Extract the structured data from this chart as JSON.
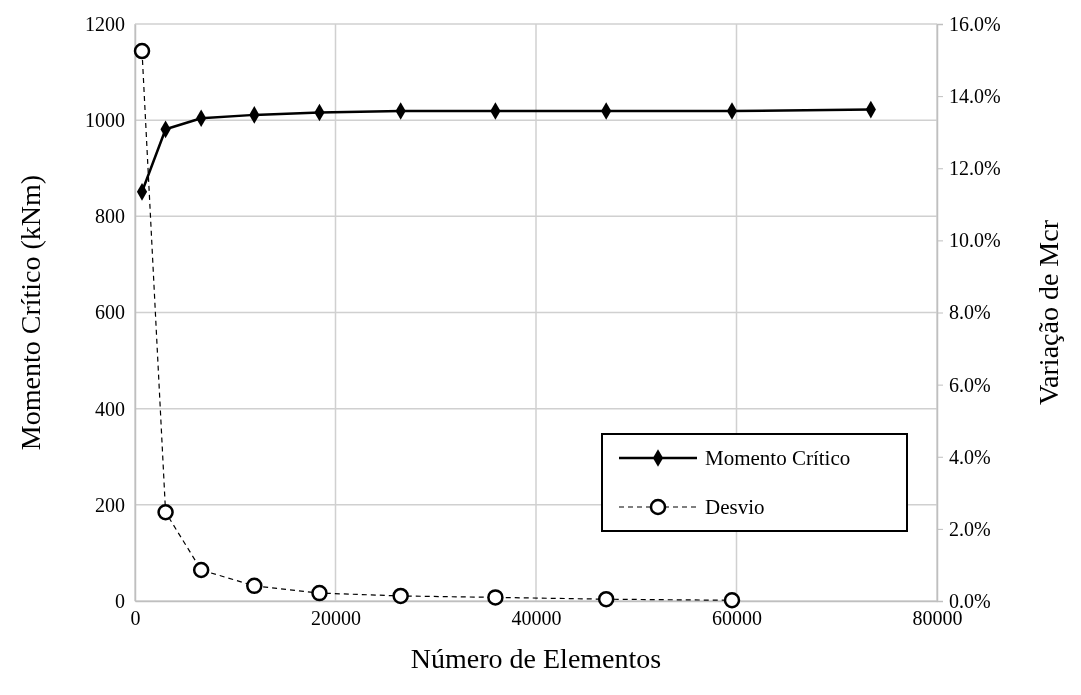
{
  "chart_data": {
    "type": "line",
    "xlabel": "Número de Elementos",
    "ylabel": "Momento Crítico (kNm)",
    "y2label": "Variação de Mcr",
    "x": [
      700,
      3050,
      6600,
      11900,
      18400,
      26500,
      35950,
      47000,
      59550,
      73400
    ],
    "series": [
      {
        "name": "Momento Crítico",
        "color": "#000000",
        "marker": "diamond",
        "line_style": "solid",
        "values": [
          851,
          981,
          1004,
          1011,
          1016,
          1019,
          1019,
          1019,
          1019,
          1022
        ]
      },
      {
        "name": "Desvio",
        "color": "#000000",
        "marker": "circle",
        "line_style": "dashed",
        "axis": "y2",
        "x": [
          700,
          3050,
          6600,
          11900,
          18400,
          26500,
          35950,
          47000,
          59550
        ],
        "values": [
          15.25,
          2.46,
          0.86,
          0.42,
          0.22,
          0.14,
          0.1,
          0.05,
          0.02
        ]
      }
    ],
    "xlim": [
      0,
      80000
    ],
    "xticks": [
      0,
      20000,
      40000,
      60000,
      80000
    ],
    "ylim": [
      0,
      1200
    ],
    "yticks": [
      0,
      200,
      400,
      600,
      800,
      1000,
      1200
    ],
    "y2lim": [
      0,
      16
    ],
    "y2ticks": [
      {
        "value": 0,
        "label": "0.0%"
      },
      {
        "value": 2,
        "label": "2.0%"
      },
      {
        "value": 4,
        "label": "4.0%"
      },
      {
        "value": 6,
        "label": "6.0%"
      },
      {
        "value": 8,
        "label": "8.0%"
      },
      {
        "value": 10,
        "label": "10.0%"
      },
      {
        "value": 12,
        "label": "12.0%"
      },
      {
        "value": 14,
        "label": "14.0%"
      },
      {
        "value": 16,
        "label": "16.0%"
      }
    ],
    "grid": true,
    "legend": "bottom right"
  }
}
